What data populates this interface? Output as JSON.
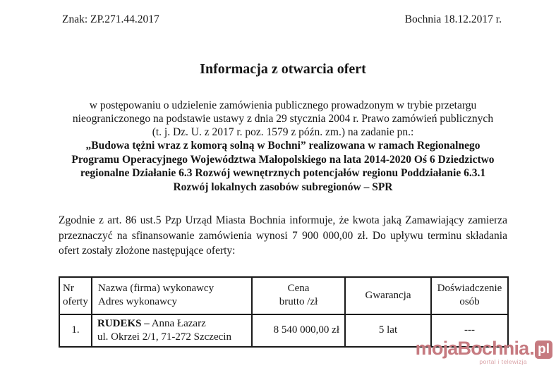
{
  "document": {
    "reference": "Znak: ZP.271.44.2017",
    "place_date": "Bochnia 18.12.2017 r.",
    "title": "Informacja z otwarcia ofert",
    "intro": "w postępowaniu o udzielenie zamówienia publicznego prowadzonym w trybie przetargu nieograniczonego na podstawie ustawy z dnia 29 stycznia 2004 r. Prawo zamówień publicznych (t. j. Dz. U. z 2017 r. poz. 1579 z późn. zm.) na zadanie pn.:",
    "project_title": "„Budowa tężni wraz z komorą solną w Bochni” realizowana w ramach Regionalnego Programu Operacyjnego Województwa Małopolskiego na lata 2014-2020 Oś 6 Dziedzictwo regionalne Działanie 6.3 Rozwój wewnętrznych potencjałów regionu Poddziałanie 6.3.1 Rozwój lokalnych zasobów subregionów – SPR",
    "announcement": "Zgodnie z art. 86 ust.5 Pzp Urząd Miasta Bochnia informuje, że kwota jaką Zamawiający zamierza przeznaczyć na sfinansowanie zamówienia wynosi 7 900 000,00 zł. Do upływu terminu składania ofert zostały złożone następujące oferty:"
  },
  "offers_table": {
    "headers": [
      {
        "line1": "Nr",
        "line2": "oferty"
      },
      {
        "line1": "Nazwa (firma) wykonawcy",
        "line2": "Adres wykonawcy"
      },
      {
        "line1": "Cena",
        "line2": "brutto /zł"
      },
      {
        "line1": "Gwarancja",
        "line2": ""
      },
      {
        "line1": "Doświadczenie",
        "line2": "osób"
      }
    ],
    "rows": [
      {
        "offer_no": "1.",
        "contractor_name_bold": "RUDEKS –",
        "contractor_name": "Anna Łazarz",
        "contractor_address": "ul. Okrzei 2/1, 71-272 Szczecin",
        "price_gross": "8 540 000,00 zł",
        "warranty": "5 lat",
        "staff_experience": "---"
      }
    ]
  },
  "watermark": {
    "brand": "mojaBochnia",
    "dot": ".",
    "tld": "pl",
    "tagline": "portal i telewizja",
    "brand_color": "#c67a80",
    "tagline_color": "#d9a2a6"
  }
}
